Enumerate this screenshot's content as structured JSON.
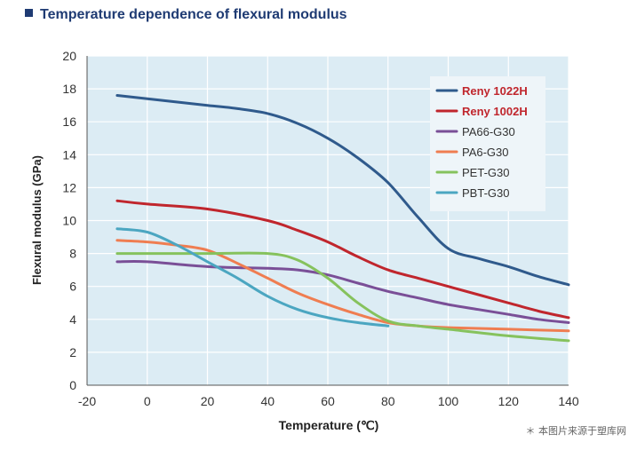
{
  "title": "Temperature dependence of flexural modulus",
  "title_icon": "square-bullet-icon",
  "credit": "＊ 本图片来源于塑库网",
  "chart_data": {
    "type": "line",
    "xlabel": "Temperature (℃)",
    "ylabel": "Flexural modulus (GPa)",
    "xlim": [
      -20,
      140
    ],
    "ylim": [
      0,
      20
    ],
    "xticks": [
      -20,
      0,
      20,
      40,
      60,
      80,
      100,
      120,
      140
    ],
    "yticks": [
      0,
      2,
      4,
      6,
      8,
      10,
      12,
      14,
      16,
      18,
      20
    ],
    "grid": true,
    "legend_position": "top-right",
    "background": "#dcecf4",
    "series": [
      {
        "name": "Reny 1022H",
        "color": "#2f5a8c",
        "bold": true,
        "label_color": "#c0262d",
        "points": [
          [
            -10,
            17.6
          ],
          [
            0,
            17.4
          ],
          [
            20,
            17.0
          ],
          [
            30,
            16.8
          ],
          [
            40,
            16.5
          ],
          [
            50,
            15.9
          ],
          [
            60,
            15.0
          ],
          [
            70,
            13.8
          ],
          [
            80,
            12.3
          ],
          [
            90,
            10.2
          ],
          [
            100,
            8.3
          ],
          [
            110,
            7.7
          ],
          [
            120,
            7.2
          ],
          [
            130,
            6.6
          ],
          [
            140,
            6.1
          ]
        ]
      },
      {
        "name": "Reny 1002H",
        "color": "#c0262d",
        "bold": true,
        "label_color": "#c0262d",
        "points": [
          [
            -10,
            11.2
          ],
          [
            0,
            11.0
          ],
          [
            20,
            10.7
          ],
          [
            40,
            10.0
          ],
          [
            50,
            9.4
          ],
          [
            60,
            8.7
          ],
          [
            70,
            7.8
          ],
          [
            80,
            7.0
          ],
          [
            90,
            6.5
          ],
          [
            100,
            6.0
          ],
          [
            110,
            5.5
          ],
          [
            120,
            5.0
          ],
          [
            130,
            4.5
          ],
          [
            140,
            4.1
          ]
        ]
      },
      {
        "name": "PA66-G30",
        "color": "#7a4f97",
        "bold": false,
        "label_color": "#333333",
        "points": [
          [
            -10,
            7.5
          ],
          [
            0,
            7.5
          ],
          [
            20,
            7.2
          ],
          [
            40,
            7.1
          ],
          [
            50,
            7.0
          ],
          [
            60,
            6.7
          ],
          [
            70,
            6.2
          ],
          [
            80,
            5.7
          ],
          [
            90,
            5.3
          ],
          [
            100,
            4.9
          ],
          [
            110,
            4.6
          ],
          [
            120,
            4.3
          ],
          [
            130,
            4.0
          ],
          [
            140,
            3.8
          ]
        ]
      },
      {
        "name": "PA6-G30",
        "color": "#ef7d51",
        "bold": false,
        "label_color": "#333333",
        "points": [
          [
            -10,
            8.8
          ],
          [
            0,
            8.7
          ],
          [
            10,
            8.5
          ],
          [
            20,
            8.2
          ],
          [
            30,
            7.4
          ],
          [
            40,
            6.5
          ],
          [
            50,
            5.6
          ],
          [
            60,
            4.9
          ],
          [
            70,
            4.3
          ],
          [
            80,
            3.8
          ],
          [
            90,
            3.6
          ],
          [
            100,
            3.5
          ],
          [
            120,
            3.4
          ],
          [
            140,
            3.3
          ]
        ]
      },
      {
        "name": "PET-G30",
        "color": "#86c25d",
        "bold": false,
        "label_color": "#333333",
        "points": [
          [
            -10,
            8.0
          ],
          [
            0,
            8.0
          ],
          [
            20,
            8.0
          ],
          [
            40,
            8.0
          ],
          [
            50,
            7.6
          ],
          [
            60,
            6.5
          ],
          [
            70,
            5.0
          ],
          [
            80,
            3.9
          ],
          [
            90,
            3.6
          ],
          [
            100,
            3.4
          ],
          [
            120,
            3.0
          ],
          [
            140,
            2.7
          ]
        ]
      },
      {
        "name": "PBT-G30",
        "color": "#4ba6c1",
        "bold": false,
        "label_color": "#333333",
        "points": [
          [
            -10,
            9.5
          ],
          [
            0,
            9.3
          ],
          [
            10,
            8.5
          ],
          [
            20,
            7.5
          ],
          [
            30,
            6.5
          ],
          [
            40,
            5.4
          ],
          [
            50,
            4.6
          ],
          [
            60,
            4.1
          ],
          [
            70,
            3.8
          ],
          [
            80,
            3.6
          ]
        ]
      }
    ]
  }
}
